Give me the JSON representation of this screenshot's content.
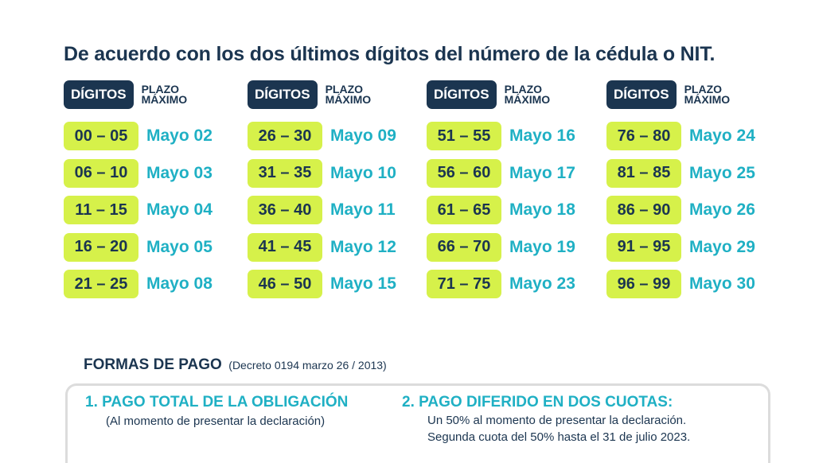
{
  "headline": "De acuerdo con los dos últimos dígitos del número de la cédula o NIT.",
  "table": {
    "header_digits": "DÍGITOS",
    "header_plazo_line1": "PLAZO",
    "header_plazo_line2": "MÁXIMO",
    "columns": [
      {
        "rows": [
          {
            "range": "00 – 05",
            "deadline": "Mayo 02"
          },
          {
            "range": "06 – 10",
            "deadline": "Mayo 03"
          },
          {
            "range": "11 – 15",
            "deadline": "Mayo 04"
          },
          {
            "range": "16 – 20",
            "deadline": "Mayo 05"
          },
          {
            "range": "21 – 25",
            "deadline": "Mayo 08"
          }
        ]
      },
      {
        "rows": [
          {
            "range": "26 – 30",
            "deadline": "Mayo 09"
          },
          {
            "range": "31 – 35",
            "deadline": "Mayo 10"
          },
          {
            "range": "36 – 40",
            "deadline": "Mayo 11"
          },
          {
            "range": "41 – 45",
            "deadline": "Mayo 12"
          },
          {
            "range": "46 – 50",
            "deadline": "Mayo 15"
          }
        ]
      },
      {
        "rows": [
          {
            "range": "51 – 55",
            "deadline": "Mayo 16"
          },
          {
            "range": "56 – 60",
            "deadline": "Mayo 17"
          },
          {
            "range": "61 – 65",
            "deadline": "Mayo 18"
          },
          {
            "range": "66 – 70",
            "deadline": "Mayo 19"
          },
          {
            "range": "71 – 75",
            "deadline": "Mayo 23"
          }
        ]
      },
      {
        "rows": [
          {
            "range": "76 – 80",
            "deadline": "Mayo 24"
          },
          {
            "range": "81 – 85",
            "deadline": "Mayo 25"
          },
          {
            "range": "86 – 90",
            "deadline": "Mayo 26"
          },
          {
            "range": "91 – 95",
            "deadline": "Mayo 29"
          },
          {
            "range": "96 – 99",
            "deadline": "Mayo 30"
          }
        ]
      }
    ]
  },
  "payment": {
    "title": "FORMAS DE PAGO",
    "decree": "(Decreto 0194 marzo 26 / 2013)",
    "option1_title": "1. PAGO TOTAL DE LA OBLIGACIÓN",
    "option1_line1": "(Al momento de presentar la declaración)",
    "option2_title": "2. PAGO DIFERIDO EN DOS CUOTAS:",
    "option2_line1": "Un 50% al momento de presentar la declaración.",
    "option2_line2": "Segunda cuota del 50% hasta el 31 de julio 2023."
  },
  "colors": {
    "navy": "#1b3550",
    "lime": "#d6f14a",
    "teal": "#1fb0c4"
  }
}
